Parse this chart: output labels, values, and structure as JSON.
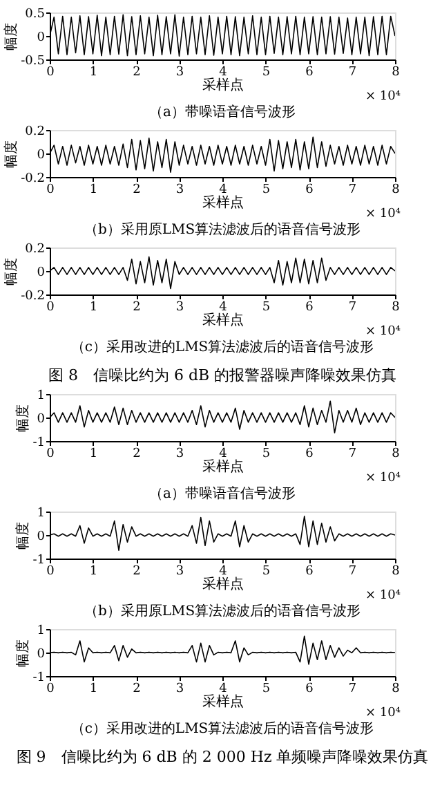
{
  "chart_data": [
    {
      "type": "line",
      "title": "（a）带噪语音信号波形",
      "xlabel": "采样点",
      "ylabel": "幅度",
      "annotations": [
        "× 10⁴"
      ],
      "grid": false,
      "x": [
        0,
        0.1,
        0.2,
        0.3,
        0.4,
        0.5,
        0.6,
        0.7,
        0.8,
        0.9,
        1,
        1.1,
        1.2,
        1.3,
        1.4,
        1.5,
        1.6,
        1.7,
        1.8,
        1.9,
        2,
        2.1,
        2.2,
        2.3,
        2.4,
        2.5,
        2.6,
        2.7,
        2.8,
        2.9,
        3,
        3.1,
        3.2,
        3.3,
        3.4,
        3.5,
        3.6,
        3.7,
        3.8,
        3.9,
        4,
        4.1,
        4.2,
        4.3,
        4.4,
        4.5,
        4.6,
        4.7,
        4.8,
        4.9,
        5,
        5.1,
        5.2,
        5.3,
        5.4,
        5.5,
        5.6,
        5.7,
        5.8,
        5.9,
        6,
        6.1,
        6.2,
        6.3,
        6.4,
        6.5,
        6.6,
        6.7,
        6.8,
        6.9,
        7,
        7.1,
        7.2,
        7.3,
        7.4,
        7.5,
        7.6,
        7.7,
        7.8,
        7.9,
        8
      ],
      "xlim": [
        0,
        8
      ],
      "xticks": [
        0,
        1,
        2,
        3,
        4,
        5,
        6,
        7,
        8
      ],
      "ylim": [
        -0.5,
        0.5
      ],
      "yticks": [
        -0.5,
        0,
        0.5
      ],
      "series": [
        {
          "color": "#000000",
          "values": [
            0,
            0.4,
            -0.38,
            0.42,
            -0.4,
            0.4,
            -0.36,
            0.43,
            -0.4,
            0.41,
            -0.38,
            0.44,
            -0.42,
            0.4,
            -0.4,
            0.42,
            -0.39,
            0.45,
            -0.42,
            0.41,
            -0.4,
            0.43,
            -0.38,
            0.4,
            -0.42,
            0.44,
            -0.4,
            0.41,
            -0.38,
            0.45,
            -0.43,
            0.4,
            -0.4,
            0.42,
            -0.38,
            0.4,
            -0.4,
            0.43,
            -0.41,
            0.4,
            -0.38,
            0.42,
            -0.4,
            0.41,
            -0.42,
            0.4,
            -0.38,
            0.43,
            -0.4,
            0.4,
            -0.4,
            0.42,
            -0.37,
            0.4,
            -0.4,
            0.41,
            -0.38,
            0.42,
            -0.4,
            0.4,
            -0.38,
            0.41,
            -0.4,
            0.4,
            -0.38,
            0.41,
            -0.39,
            0.4,
            -0.37,
            0.38,
            -0.4,
            0.4,
            -0.38,
            0.4,
            -0.42,
            0.41,
            -0.4,
            0.42,
            -0.4,
            0.42,
            0
          ]
        }
      ]
    },
    {
      "type": "line",
      "title": "（b）采用原LMS算法滤波后的语音信号波形",
      "xlabel": "采样点",
      "ylabel": "幅度",
      "annotations": [
        "× 10⁴"
      ],
      "grid": false,
      "x": [
        0,
        0.1,
        0.2,
        0.3,
        0.4,
        0.5,
        0.6,
        0.7,
        0.8,
        0.9,
        1,
        1.1,
        1.2,
        1.3,
        1.4,
        1.5,
        1.6,
        1.7,
        1.8,
        1.9,
        2,
        2.1,
        2.2,
        2.3,
        2.4,
        2.5,
        2.6,
        2.7,
        2.8,
        2.9,
        3,
        3.1,
        3.2,
        3.3,
        3.4,
        3.5,
        3.6,
        3.7,
        3.8,
        3.9,
        4,
        4.1,
        4.2,
        4.3,
        4.4,
        4.5,
        4.6,
        4.7,
        4.8,
        4.9,
        5,
        5.1,
        5.2,
        5.3,
        5.4,
        5.5,
        5.6,
        5.7,
        5.8,
        5.9,
        6,
        6.1,
        6.2,
        6.3,
        6.4,
        6.5,
        6.6,
        6.7,
        6.8,
        6.9,
        7,
        7.1,
        7.2,
        7.3,
        7.4,
        7.5,
        7.6,
        7.7,
        7.8,
        7.9,
        8
      ],
      "xlim": [
        0,
        8
      ],
      "xticks": [
        0,
        1,
        2,
        3,
        4,
        5,
        6,
        7,
        8
      ],
      "ylim": [
        -0.2,
        0.2
      ],
      "yticks": [
        -0.2,
        0,
        0.2
      ],
      "series": [
        {
          "color": "#000000",
          "values": [
            0,
            0.07,
            -0.09,
            0.06,
            -0.1,
            0.07,
            -0.08,
            0.06,
            -0.1,
            0.07,
            -0.09,
            0.06,
            -0.1,
            0.07,
            -0.09,
            0.06,
            -0.1,
            0.08,
            -0.12,
            0.12,
            -0.14,
            0.11,
            -0.13,
            0.13,
            -0.15,
            0.1,
            -0.12,
            0.12,
            -0.16,
            0.1,
            -0.1,
            0.07,
            -0.09,
            0.06,
            -0.1,
            0.07,
            -0.09,
            0.06,
            -0.1,
            0.07,
            -0.09,
            0.06,
            -0.1,
            0.07,
            -0.09,
            0.06,
            -0.1,
            0.07,
            -0.09,
            0.06,
            -0.1,
            0.12,
            -0.15,
            0.11,
            -0.13,
            0.1,
            -0.12,
            0.12,
            -0.14,
            0.1,
            -0.13,
            0.14,
            -0.12,
            0.1,
            -0.11,
            0.07,
            -0.09,
            0.06,
            -0.1,
            0.07,
            -0.09,
            0.06,
            -0.1,
            0.07,
            -0.09,
            0.06,
            -0.1,
            0.07,
            -0.09,
            0.06,
            0
          ]
        }
      ]
    },
    {
      "type": "line",
      "title": "（c）采用改进的LMS算法滤波后的语音信号波形",
      "xlabel": "采样点",
      "ylabel": "幅度",
      "annotations": [
        "× 10⁴",
        "图 8　信噪比约为 6 dB 的报警器噪声降噪效果仿真"
      ],
      "grid": false,
      "x": [
        0,
        0.1,
        0.2,
        0.3,
        0.4,
        0.5,
        0.6,
        0.7,
        0.8,
        0.9,
        1,
        1.1,
        1.2,
        1.3,
        1.4,
        1.5,
        1.6,
        1.7,
        1.8,
        1.9,
        2,
        2.1,
        2.2,
        2.3,
        2.4,
        2.5,
        2.6,
        2.7,
        2.8,
        2.9,
        3,
        3.1,
        3.2,
        3.3,
        3.4,
        3.5,
        3.6,
        3.7,
        3.8,
        3.9,
        4,
        4.1,
        4.2,
        4.3,
        4.4,
        4.5,
        4.6,
        4.7,
        4.8,
        4.9,
        5,
        5.1,
        5.2,
        5.3,
        5.4,
        5.5,
        5.6,
        5.7,
        5.8,
        5.9,
        6,
        6.1,
        6.2,
        6.3,
        6.4,
        6.5,
        6.6,
        6.7,
        6.8,
        6.9,
        7,
        7.1,
        7.2,
        7.3,
        7.4,
        7.5,
        7.6,
        7.7,
        7.8,
        7.9,
        8
      ],
      "xlim": [
        0,
        8
      ],
      "xticks": [
        0,
        1,
        2,
        3,
        4,
        5,
        6,
        7,
        8
      ],
      "ylim": [
        -0.2,
        0.2
      ],
      "yticks": [
        -0.2,
        0,
        0.2
      ],
      "series": [
        {
          "color": "#000000",
          "values": [
            0,
            0.03,
            -0.03,
            0.03,
            -0.03,
            0.03,
            -0.03,
            0.03,
            -0.03,
            0.03,
            -0.03,
            0.03,
            -0.03,
            0.03,
            -0.03,
            0.03,
            -0.03,
            0.03,
            -0.08,
            0.1,
            -0.11,
            0.08,
            -0.1,
            0.12,
            -0.12,
            0.09,
            -0.1,
            0.1,
            -0.15,
            0.08,
            -0.03,
            0.03,
            -0.03,
            0.03,
            -0.03,
            0.03,
            -0.03,
            0.03,
            -0.03,
            0.03,
            -0.03,
            0.03,
            -0.03,
            0.03,
            -0.03,
            0.03,
            -0.03,
            0.03,
            -0.03,
            0.03,
            -0.03,
            0.03,
            -0.1,
            0.09,
            -0.12,
            0.08,
            -0.1,
            0.11,
            -0.1,
            0.1,
            -0.11,
            0.09,
            -0.1,
            0.11,
            -0.08,
            0.03,
            -0.03,
            0.03,
            -0.03,
            0.03,
            -0.03,
            0.03,
            -0.03,
            0.03,
            -0.03,
            0.03,
            -0.03,
            0.03,
            -0.03,
            0.03,
            0
          ]
        }
      ]
    },
    {
      "type": "line",
      "title": "（a）带噪语音信号波形",
      "xlabel": "采样点",
      "ylabel": "幅度",
      "annotations": [
        "× 10⁴"
      ],
      "grid": false,
      "x": [
        0,
        0.1,
        0.2,
        0.3,
        0.4,
        0.5,
        0.6,
        0.7,
        0.8,
        0.9,
        1,
        1.1,
        1.2,
        1.3,
        1.4,
        1.5,
        1.6,
        1.7,
        1.8,
        1.9,
        2,
        2.1,
        2.2,
        2.3,
        2.4,
        2.5,
        2.6,
        2.7,
        2.8,
        2.9,
        3,
        3.1,
        3.2,
        3.3,
        3.4,
        3.5,
        3.6,
        3.7,
        3.8,
        3.9,
        4,
        4.1,
        4.2,
        4.3,
        4.4,
        4.5,
        4.6,
        4.7,
        4.8,
        4.9,
        5,
        5.1,
        5.2,
        5.3,
        5.4,
        5.5,
        5.6,
        5.7,
        5.8,
        5.9,
        6,
        6.1,
        6.2,
        6.3,
        6.4,
        6.5,
        6.6,
        6.7,
        6.8,
        6.9,
        7,
        7.1,
        7.2,
        7.3,
        7.4,
        7.5,
        7.6,
        7.7,
        7.8,
        7.9,
        8
      ],
      "xlim": [
        0,
        8
      ],
      "xticks": [
        0,
        1,
        2,
        3,
        4,
        5,
        6,
        7,
        8
      ],
      "ylim": [
        -1,
        1
      ],
      "yticks": [
        -1,
        0,
        1
      ],
      "series": [
        {
          "color": "#000000",
          "values": [
            0,
            0.2,
            -0.2,
            0.2,
            -0.2,
            0.2,
            -0.2,
            0.5,
            -0.4,
            0.3,
            -0.2,
            0.2,
            -0.2,
            0.2,
            -0.2,
            0.45,
            -0.3,
            0.4,
            -0.3,
            0.3,
            -0.2,
            0.2,
            -0.2,
            0.2,
            -0.2,
            0.2,
            -0.2,
            0.2,
            -0.2,
            0.2,
            -0.2,
            0.2,
            -0.2,
            0.3,
            -0.3,
            0.5,
            -0.4,
            0.3,
            -0.2,
            0.2,
            -0.2,
            0.2,
            -0.2,
            0.4,
            -0.5,
            0.3,
            -0.2,
            0.2,
            -0.2,
            0.2,
            -0.2,
            0.2,
            -0.2,
            0.2,
            -0.2,
            0.2,
            -0.2,
            0.2,
            -0.3,
            0.5,
            -0.4,
            0.4,
            -0.3,
            0.3,
            -0.2,
            0.7,
            -0.65,
            0.3,
            -0.2,
            0.3,
            -0.2,
            0.4,
            -0.3,
            0.2,
            -0.2,
            0.2,
            -0.2,
            0.2,
            -0.2,
            0.2,
            0
          ]
        }
      ]
    },
    {
      "type": "line",
      "title": "（b）采用原LMS算法滤波后的语音信号波形",
      "xlabel": "采样点",
      "ylabel": "幅度",
      "annotations": [
        "× 10⁴"
      ],
      "grid": false,
      "x": [
        0,
        0.1,
        0.2,
        0.3,
        0.4,
        0.5,
        0.6,
        0.7,
        0.8,
        0.9,
        1,
        1.1,
        1.2,
        1.3,
        1.4,
        1.5,
        1.6,
        1.7,
        1.8,
        1.9,
        2,
        2.1,
        2.2,
        2.3,
        2.4,
        2.5,
        2.6,
        2.7,
        2.8,
        2.9,
        3,
        3.1,
        3.2,
        3.3,
        3.4,
        3.5,
        3.6,
        3.7,
        3.8,
        3.9,
        4,
        4.1,
        4.2,
        4.3,
        4.4,
        4.5,
        4.6,
        4.7,
        4.8,
        4.9,
        5,
        5.1,
        5.2,
        5.3,
        5.4,
        5.5,
        5.6,
        5.7,
        5.8,
        5.9,
        6,
        6.1,
        6.2,
        6.3,
        6.4,
        6.5,
        6.6,
        6.7,
        6.8,
        6.9,
        7,
        7.1,
        7.2,
        7.3,
        7.4,
        7.5,
        7.6,
        7.7,
        7.8,
        7.9,
        8
      ],
      "xlim": [
        0,
        8
      ],
      "xticks": [
        0,
        1,
        2,
        3,
        4,
        5,
        6,
        7,
        8
      ],
      "ylim": [
        -1,
        1
      ],
      "yticks": [
        -1,
        0,
        1
      ],
      "series": [
        {
          "color": "#000000",
          "values": [
            0,
            0.05,
            -0.05,
            0.05,
            -0.05,
            0.05,
            -0.05,
            0.4,
            -0.35,
            0.3,
            -0.05,
            0.05,
            -0.05,
            0.05,
            -0.05,
            0.6,
            -0.65,
            0.45,
            -0.3,
            0.35,
            -0.05,
            0.05,
            -0.05,
            0.05,
            -0.05,
            0.05,
            -0.05,
            0.05,
            -0.05,
            0.05,
            -0.05,
            0.05,
            -0.05,
            0.4,
            -0.35,
            0.75,
            -0.45,
            0.6,
            -0.3,
            0.05,
            -0.05,
            0.05,
            -0.05,
            0.6,
            -0.5,
            0.4,
            -0.3,
            0.05,
            -0.05,
            0.05,
            -0.05,
            0.05,
            -0.05,
            0.05,
            -0.05,
            0.05,
            -0.05,
            0.05,
            -0.4,
            0.8,
            -0.5,
            0.6,
            -0.4,
            0.5,
            -0.3,
            0.35,
            -0.25,
            0.05,
            -0.05,
            0.05,
            -0.05,
            0.05,
            -0.05,
            0.05,
            -0.05,
            0.05,
            -0.05,
            0.05,
            -0.05,
            0.05,
            0
          ]
        }
      ]
    },
    {
      "type": "line",
      "title": "（c）采用改进的LMS算法滤波后的语音信号波形",
      "xlabel": "采样点",
      "ylabel": "幅度",
      "annotations": [
        "× 10⁴",
        "图 9　信噪比约为 6 dB 的 2 000 Hz 单频噪声降噪效果仿真"
      ],
      "grid": false,
      "x": [
        0,
        0.1,
        0.2,
        0.3,
        0.4,
        0.5,
        0.6,
        0.7,
        0.8,
        0.9,
        1,
        1.1,
        1.2,
        1.3,
        1.4,
        1.5,
        1.6,
        1.7,
        1.8,
        1.9,
        2,
        2.1,
        2.2,
        2.3,
        2.4,
        2.5,
        2.6,
        2.7,
        2.8,
        2.9,
        3,
        3.1,
        3.2,
        3.3,
        3.4,
        3.5,
        3.6,
        3.7,
        3.8,
        3.9,
        4,
        4.1,
        4.2,
        4.3,
        4.4,
        4.5,
        4.6,
        4.7,
        4.8,
        4.9,
        5,
        5.1,
        5.2,
        5.3,
        5.4,
        5.5,
        5.6,
        5.7,
        5.8,
        5.9,
        6,
        6.1,
        6.2,
        6.3,
        6.4,
        6.5,
        6.6,
        6.7,
        6.8,
        6.9,
        7,
        7.1,
        7.2,
        7.3,
        7.4,
        7.5,
        7.6,
        7.7,
        7.8,
        7.9,
        8
      ],
      "xlim": [
        0,
        8
      ],
      "xticks": [
        0,
        1,
        2,
        3,
        4,
        5,
        6,
        7,
        8
      ],
      "ylim": [
        -1,
        1
      ],
      "yticks": [
        -1,
        0,
        1
      ],
      "series": [
        {
          "color": "#000000",
          "values": [
            0,
            0.01,
            -0.01,
            0.01,
            -0.01,
            0.01,
            -0.1,
            0.5,
            -0.4,
            0.2,
            -0.01,
            0.01,
            -0.01,
            0.01,
            -0.01,
            0.3,
            -0.35,
            0.3,
            -0.2,
            0.15,
            -0.01,
            0.01,
            -0.01,
            0.01,
            -0.01,
            0.01,
            -0.01,
            0.01,
            -0.01,
            0.01,
            -0.01,
            0.01,
            -0.01,
            0.3,
            -0.4,
            0.4,
            -0.4,
            0.3,
            -0.1,
            0.01,
            -0.01,
            0.01,
            -0.01,
            0.5,
            -0.4,
            0.2,
            -0.1,
            0.01,
            -0.01,
            0.01,
            -0.01,
            0.01,
            -0.01,
            0.01,
            -0.01,
            0.01,
            -0.01,
            0.01,
            -0.4,
            0.7,
            -0.5,
            0.4,
            -0.3,
            0.5,
            -0.3,
            0.3,
            -0.2,
            0.2,
            -0.15,
            0.1,
            -0.01,
            0.2,
            -0.01,
            0.01,
            -0.01,
            0.01,
            -0.01,
            0.01,
            -0.01,
            0.01,
            0
          ]
        }
      ]
    }
  ]
}
